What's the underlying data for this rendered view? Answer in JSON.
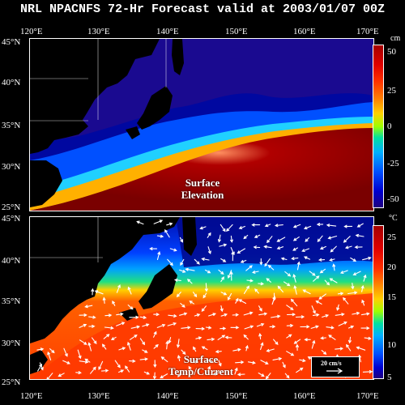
{
  "title": "NRL NPACNFS 72-Hr Forecast valid at 2003/01/07 00Z",
  "lon_labels": [
    "120°E",
    "130°E",
    "140°E",
    "150°E",
    "160°E",
    "170°E"
  ],
  "lat_labels": [
    "45°N",
    "40°N",
    "35°N",
    "30°N",
    "25°N"
  ],
  "panel_top": {
    "label_line1": "Surface",
    "label_line2": "Elevation",
    "unit": "cm",
    "colorbar_ticks": [
      "50",
      "25",
      "0",
      "-25",
      "-50"
    ]
  },
  "panel_bottom": {
    "label_line1": "Surface",
    "label_line2": "Temp/Current",
    "unit": "°C",
    "colorbar_ticks": [
      "25",
      "20",
      "15",
      "10",
      "5"
    ],
    "vector_legend": "20 cm/s"
  }
}
